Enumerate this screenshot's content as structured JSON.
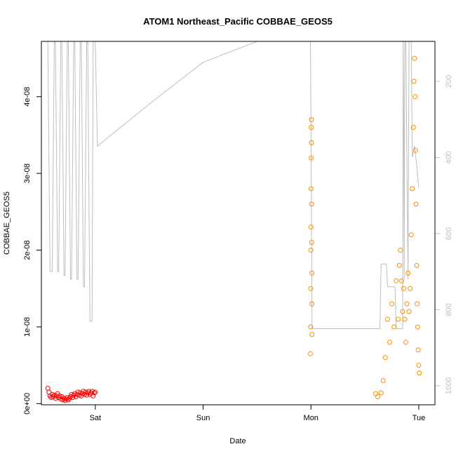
{
  "chart_data": {
    "type": "scatter",
    "title": "ATOM1 Northeast_Pacific COBBAE_GEOS5",
    "xlabel": "Date",
    "ylabel": "COBBAE_GEOS5",
    "x_ticks": [
      "Sat",
      "Sun",
      "Mon",
      "Tue"
    ],
    "y_ticks": [
      "0e+00",
      "1e-08",
      "2e-08",
      "3e-08",
      "4e-08"
    ],
    "y_tick_values": [
      0,
      1e-08,
      2e-08,
      3e-08,
      4e-08
    ],
    "y2_ticks": [
      "200",
      "400",
      "600",
      "800",
      "1000"
    ],
    "y2_tick_values": [
      200,
      400,
      600,
      800,
      1000
    ],
    "colors": {
      "red": "#ff0000",
      "orange": "#ff8c00",
      "pressure": "#bebebe"
    },
    "series": [
      {
        "color": "#ff0000",
        "points": [
          [
            5.56,
            2e-09
          ],
          [
            5.57,
            1.5e-09
          ],
          [
            5.58,
            1e-09
          ],
          [
            5.59,
            8e-10
          ],
          [
            5.6,
            1.2e-09
          ],
          [
            5.61,
            9e-10
          ],
          [
            5.62,
            1.1e-09
          ],
          [
            5.63,
            7e-10
          ],
          [
            5.64,
            1e-09
          ],
          [
            5.65,
            1.3e-09
          ],
          [
            5.66,
            8e-10
          ],
          [
            5.67,
            1e-09
          ],
          [
            5.68,
            6e-10
          ],
          [
            5.69,
            9e-10
          ],
          [
            5.7,
            5e-10
          ],
          [
            5.71,
            7e-10
          ],
          [
            5.72,
            4e-10
          ],
          [
            5.73,
            6e-10
          ],
          [
            5.74,
            8e-10
          ],
          [
            5.75,
            5e-10
          ],
          [
            5.76,
            7e-10
          ],
          [
            5.77,
            9e-10
          ],
          [
            5.78,
            1.2e-09
          ],
          [
            5.79,
            8e-10
          ],
          [
            5.8,
            1.1e-09
          ],
          [
            5.81,
            1.3e-09
          ],
          [
            5.82,
            9e-10
          ],
          [
            5.83,
            1.2e-09
          ],
          [
            5.84,
            1.5e-09
          ],
          [
            5.85,
            1.1e-09
          ],
          [
            5.86,
            1.4e-09
          ],
          [
            5.87,
            1e-09
          ],
          [
            5.88,
            1.3e-09
          ],
          [
            5.89,
            1.6e-09
          ],
          [
            5.9,
            1.2e-09
          ],
          [
            5.91,
            1.5e-09
          ],
          [
            5.92,
            1.1e-09
          ],
          [
            5.93,
            1.4e-09
          ],
          [
            5.94,
            1.6e-09
          ],
          [
            5.95,
            1.2e-09
          ],
          [
            5.96,
            1.4e-09
          ],
          [
            5.97,
            1.6e-09
          ],
          [
            5.98,
            1e-09
          ],
          [
            5.99,
            1.4e-09
          ],
          [
            6.0,
            1.5e-09
          ]
        ]
      },
      {
        "color": "#ff8c00",
        "points": [
          [
            7.995,
            6.5e-09
          ],
          [
            7.997,
            1e-08
          ],
          [
            7.998,
            1.5e-08
          ],
          [
            7.999,
            2e-08
          ],
          [
            8.0,
            2.3e-08
          ],
          [
            8.001,
            2.8e-08
          ],
          [
            8.002,
            3.2e-08
          ],
          [
            8.003,
            3.6e-08
          ],
          [
            8.004,
            3.7e-08
          ],
          [
            8.005,
            3.4e-08
          ],
          [
            8.006,
            2.6e-08
          ],
          [
            8.007,
            2.1e-08
          ],
          [
            8.008,
            1.7e-08
          ],
          [
            8.009,
            1.3e-08
          ],
          [
            8.01,
            9e-09
          ],
          [
            8.6,
            1.3e-09
          ],
          [
            8.62,
            9e-10
          ],
          [
            8.65,
            1.4e-09
          ],
          [
            8.67,
            3e-09
          ],
          [
            8.69,
            6e-09
          ],
          [
            8.71,
            1.1e-08
          ],
          [
            8.73,
            8e-09
          ],
          [
            8.75,
            1.3e-08
          ],
          [
            8.77,
            1e-08
          ],
          [
            8.79,
            1.6e-08
          ],
          [
            8.81,
            1.1e-08
          ],
          [
            8.82,
            1.8e-08
          ],
          [
            8.83,
            2e-08
          ],
          [
            8.84,
            1.6e-08
          ],
          [
            8.85,
            1.2e-08
          ],
          [
            8.86,
            1.5e-08
          ],
          [
            8.87,
            1.1e-08
          ],
          [
            8.88,
            8e-09
          ],
          [
            8.89,
            1.3e-08
          ],
          [
            8.9,
            1.7e-08
          ],
          [
            8.91,
            1.2e-08
          ],
          [
            8.92,
            1.5e-08
          ],
          [
            8.93,
            2.2e-08
          ],
          [
            8.94,
            2.8e-08
          ],
          [
            8.95,
            3.6e-08
          ],
          [
            8.955,
            4.2e-08
          ],
          [
            8.96,
            4.5e-08
          ],
          [
            8.965,
            4e-08
          ],
          [
            8.97,
            3.3e-08
          ],
          [
            8.975,
            2.6e-08
          ],
          [
            8.98,
            1.8e-08
          ],
          [
            8.985,
            1.3e-08
          ],
          [
            8.99,
            1e-08
          ],
          [
            8.995,
            7e-09
          ],
          [
            9.0,
            5e-09
          ],
          [
            9.005,
            4e-09
          ]
        ]
      }
    ],
    "pressure_trace": {
      "color": "#bebebe",
      "points": [
        [
          5.55,
          0
        ],
        [
          5.56,
          0
        ],
        [
          5.58,
          700
        ],
        [
          5.6,
          700
        ],
        [
          5.62,
          0
        ],
        [
          5.63,
          0
        ],
        [
          5.65,
          700
        ],
        [
          5.66,
          700
        ],
        [
          5.68,
          0
        ],
        [
          5.69,
          0
        ],
        [
          5.71,
          710
        ],
        [
          5.72,
          710
        ],
        [
          5.74,
          0
        ],
        [
          5.75,
          0
        ],
        [
          5.77,
          720
        ],
        [
          5.78,
          720
        ],
        [
          5.8,
          0
        ],
        [
          5.81,
          0
        ],
        [
          5.83,
          720
        ],
        [
          5.84,
          720
        ],
        [
          5.86,
          0
        ],
        [
          5.87,
          0
        ],
        [
          5.89,
          740
        ],
        [
          5.9,
          740
        ],
        [
          5.92,
          0
        ],
        [
          5.93,
          0
        ],
        [
          5.95,
          830
        ],
        [
          5.97,
          830
        ],
        [
          5.98,
          0
        ],
        [
          6.0,
          0
        ],
        [
          6.02,
          370
        ],
        [
          6.5,
          260
        ],
        [
          7.0,
          150
        ],
        [
          7.5,
          40
        ],
        [
          7.7,
          0
        ],
        [
          7.995,
          0
        ],
        [
          8.0,
          290
        ],
        [
          8.01,
          850
        ],
        [
          8.3,
          850
        ],
        [
          8.6,
          850
        ],
        [
          8.64,
          850
        ],
        [
          8.65,
          680
        ],
        [
          8.7,
          680
        ],
        [
          8.71,
          740
        ],
        [
          8.78,
          740
        ],
        [
          8.79,
          850
        ],
        [
          8.85,
          850
        ],
        [
          8.855,
          0
        ],
        [
          8.86,
          300
        ],
        [
          8.865,
          720
        ],
        [
          8.87,
          0
        ],
        [
          8.88,
          0
        ],
        [
          8.9,
          720
        ],
        [
          8.91,
          0
        ],
        [
          8.93,
          0
        ],
        [
          8.94,
          400
        ],
        [
          8.96,
          370
        ],
        [
          8.98,
          420
        ],
        [
          9.0,
          480
        ]
      ]
    },
    "xlim": [
      5.5,
      9.15
    ],
    "ylim": [
      -1.5e-10,
      4.72e-08
    ],
    "y2lim": [
      95,
      1050
    ],
    "y2_reversed": true,
    "grid": false
  }
}
